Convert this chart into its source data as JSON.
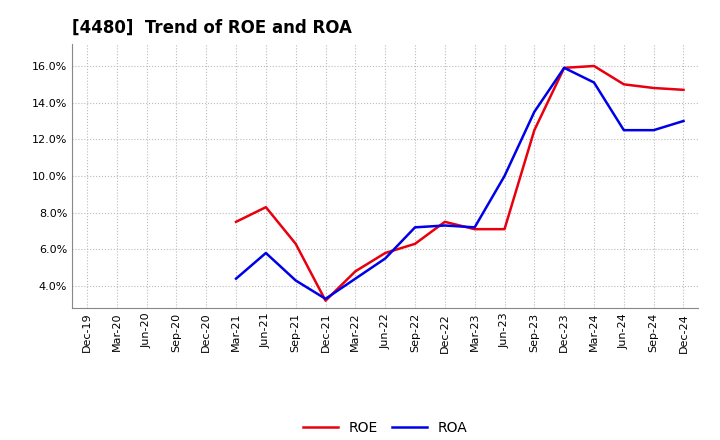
{
  "title": "[4480]  Trend of ROE and ROA",
  "x_labels": [
    "Dec-19",
    "Mar-20",
    "Jun-20",
    "Sep-20",
    "Dec-20",
    "Mar-21",
    "Jun-21",
    "Sep-21",
    "Dec-21",
    "Mar-22",
    "Jun-22",
    "Sep-22",
    "Dec-22",
    "Mar-23",
    "Jun-23",
    "Sep-23",
    "Dec-23",
    "Mar-24",
    "Jun-24",
    "Sep-24",
    "Dec-24"
  ],
  "roe": [
    null,
    null,
    null,
    null,
    null,
    7.5,
    8.3,
    6.3,
    3.2,
    4.8,
    5.8,
    6.3,
    7.5,
    7.1,
    7.1,
    12.5,
    15.9,
    16.0,
    15.0,
    14.8,
    14.7
  ],
  "roa": [
    null,
    null,
    null,
    null,
    null,
    4.4,
    5.8,
    4.3,
    3.3,
    4.4,
    5.5,
    7.2,
    7.3,
    7.2,
    10.0,
    13.5,
    15.9,
    15.1,
    12.5,
    12.5,
    13.0
  ],
  "roe_color": "#e8000e",
  "roa_color": "#0000e8",
  "ylim": [
    2.8,
    17.2
  ],
  "yticks": [
    4.0,
    6.0,
    8.0,
    10.0,
    12.0,
    14.0,
    16.0
  ],
  "bg_color": "#ffffff",
  "grid_color": "#bbbbbb",
  "line_width": 1.8,
  "title_fontsize": 12,
  "tick_fontsize": 8,
  "legend_fontsize": 10
}
